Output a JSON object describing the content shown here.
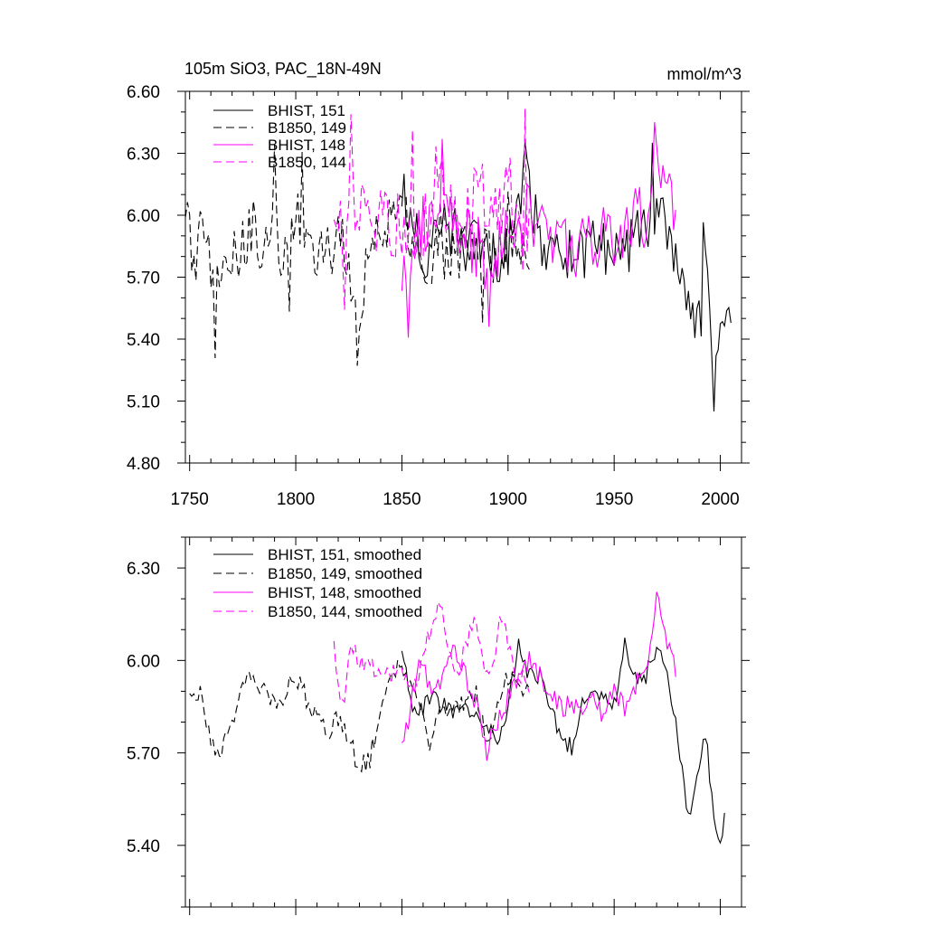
{
  "colors": {
    "black": "#000000",
    "magenta": "#ff00ff"
  },
  "chart_data": [
    {
      "type": "line",
      "title": "105m SiO3, PAC_18N-49N",
      "units": "mmol/m^3",
      "xlabel": "",
      "ylabel": "",
      "xlim": [
        1748,
        2010
      ],
      "ylim": [
        4.8,
        6.6
      ],
      "xticks": [
        1750,
        1800,
        1850,
        1900,
        1950,
        2000
      ],
      "yticks": [
        4.8,
        5.1,
        5.4,
        5.7,
        6.0,
        6.3,
        6.6
      ],
      "xtick_labels": [
        "1750",
        "1800",
        "1850",
        "1900",
        "1950",
        "2000"
      ],
      "ytick_labels": [
        "4.80",
        "5.10",
        "5.40",
        "5.70",
        "6.00",
        "6.30",
        "6.60"
      ],
      "legend_position": "top-left",
      "series": [
        {
          "name": "BHIST, 151",
          "color": "#000000",
          "dash": "solid",
          "x0": 1850,
          "x1": 2005,
          "n": 156,
          "knots": [
            [
              1850,
              6.1
            ],
            [
              1860,
              5.78
            ],
            [
              1870,
              5.95
            ],
            [
              1880,
              5.85
            ],
            [
              1890,
              5.82
            ],
            [
              1900,
              5.8
            ],
            [
              1908,
              6.2
            ],
            [
              1915,
              5.9
            ],
            [
              1920,
              5.85
            ],
            [
              1930,
              5.8
            ],
            [
              1940,
              5.85
            ],
            [
              1950,
              5.8
            ],
            [
              1955,
              5.85
            ],
            [
              1960,
              5.95
            ],
            [
              1965,
              5.9
            ],
            [
              1970,
              6.05
            ],
            [
              1975,
              5.95
            ],
            [
              1980,
              5.8
            ],
            [
              1985,
              5.5
            ],
            [
              1990,
              5.45
            ],
            [
              1993,
              5.75
            ],
            [
              1997,
              5.35
            ],
            [
              2000,
              5.35
            ],
            [
              2005,
              5.55
            ]
          ],
          "amp": 0.14,
          "seed": 151,
          "spikes": [
            [
              1854,
              0.2
            ],
            [
              1908,
              0.25
            ],
            [
              1930,
              -0.2
            ],
            [
              1957,
              -0.3
            ],
            [
              1968,
              0.3
            ],
            [
              1988,
              -0.2
            ],
            [
              1992,
              0.3
            ],
            [
              1997,
              -0.35
            ]
          ]
        },
        {
          "name": "B1850, 149",
          "color": "#000000",
          "dash": "dash",
          "x0": 1748,
          "x1": 1910,
          "n": 163,
          "knots": [
            [
              1748,
              6.05
            ],
            [
              1752,
              5.75
            ],
            [
              1756,
              6.05
            ],
            [
              1762,
              5.6
            ],
            [
              1770,
              5.78
            ],
            [
              1775,
              5.85
            ],
            [
              1780,
              5.95
            ],
            [
              1785,
              5.8
            ],
            [
              1790,
              6.0
            ],
            [
              1795,
              5.75
            ],
            [
              1800,
              6.0
            ],
            [
              1808,
              5.85
            ],
            [
              1815,
              5.8
            ],
            [
              1820,
              5.9
            ],
            [
              1825,
              5.75
            ],
            [
              1830,
              5.55
            ],
            [
              1835,
              5.85
            ],
            [
              1840,
              5.95
            ],
            [
              1850,
              6.0
            ],
            [
              1860,
              5.8
            ],
            [
              1870,
              5.8
            ],
            [
              1880,
              5.85
            ],
            [
              1890,
              5.78
            ],
            [
              1900,
              5.9
            ],
            [
              1910,
              5.85
            ]
          ],
          "amp": 0.15,
          "seed": 149,
          "spikes": [
            [
              1755,
              0.15
            ],
            [
              1762,
              -0.15
            ],
            [
              1790,
              0.2
            ],
            [
              1797,
              -0.25
            ],
            [
              1803,
              0.25
            ],
            [
              1829,
              -0.25
            ],
            [
              1868,
              0.2
            ],
            [
              1888,
              -0.25
            ],
            [
              1900,
              0.3
            ]
          ]
        },
        {
          "name": "BHIST, 148",
          "color": "#ff00ff",
          "dash": "solid",
          "x0": 1850,
          "x1": 1979,
          "n": 130,
          "knots": [
            [
              1850,
              5.7
            ],
            [
              1855,
              5.9
            ],
            [
              1860,
              5.95
            ],
            [
              1870,
              6.0
            ],
            [
              1880,
              5.9
            ],
            [
              1890,
              5.7
            ],
            [
              1895,
              5.85
            ],
            [
              1900,
              5.9
            ],
            [
              1905,
              6.0
            ],
            [
              1910,
              6.0
            ],
            [
              1915,
              5.95
            ],
            [
              1920,
              5.9
            ],
            [
              1930,
              5.85
            ],
            [
              1940,
              5.85
            ],
            [
              1950,
              5.85
            ],
            [
              1955,
              5.95
            ],
            [
              1960,
              6.0
            ],
            [
              1965,
              5.95
            ],
            [
              1970,
              6.25
            ],
            [
              1975,
              6.1
            ],
            [
              1979,
              5.95
            ]
          ],
          "amp": 0.16,
          "seed": 148,
          "spikes": [
            [
              1853,
              -0.3
            ],
            [
              1869,
              0.25
            ],
            [
              1886,
              0.25
            ],
            [
              1891,
              -0.35
            ],
            [
              1945,
              0.3
            ],
            [
              1962,
              0.25
            ],
            [
              1969,
              0.35
            ]
          ]
        },
        {
          "name": "B1850, 144",
          "color": "#ff00ff",
          "dash": "dash",
          "x0": 1818,
          "x1": 1910,
          "n": 93,
          "knots": [
            [
              1818,
              6.05
            ],
            [
              1822,
              5.85
            ],
            [
              1826,
              6.1
            ],
            [
              1830,
              6.0
            ],
            [
              1835,
              5.98
            ],
            [
              1840,
              5.98
            ],
            [
              1845,
              5.95
            ],
            [
              1850,
              5.95
            ],
            [
              1855,
              5.85
            ],
            [
              1860,
              5.9
            ],
            [
              1865,
              6.15
            ],
            [
              1870,
              6.1
            ],
            [
              1875,
              6.0
            ],
            [
              1880,
              6.0
            ],
            [
              1885,
              6.1
            ],
            [
              1890,
              6.1
            ],
            [
              1895,
              5.95
            ],
            [
              1900,
              6.15
            ],
            [
              1905,
              5.95
            ],
            [
              1910,
              5.9
            ]
          ],
          "amp": 0.17,
          "seed": 144,
          "spikes": [
            [
              1823,
              -0.3
            ],
            [
              1826,
              0.3
            ],
            [
              1855,
              0.55
            ],
            [
              1866,
              0.3
            ],
            [
              1896,
              0.3
            ],
            [
              1907,
              -0.35
            ],
            [
              1908,
              0.45
            ]
          ]
        }
      ]
    },
    {
      "type": "line",
      "title": "",
      "xlim": [
        1748,
        2010
      ],
      "ylim": [
        5.2,
        6.4
      ],
      "yticks": [
        5.4,
        5.7,
        6.0,
        6.3
      ],
      "ytick_labels": [
        "5.40",
        "5.70",
        "6.00",
        "6.30"
      ],
      "legend_position": "top-left",
      "series": [
        {
          "name": "BHIST, 151, smoothed",
          "color": "#000000",
          "dash": "solid",
          "x0": 1850,
          "x1": 2002,
          "n": 153,
          "knots": [
            [
              1850,
              6.02
            ],
            [
              1855,
              5.85
            ],
            [
              1860,
              5.85
            ],
            [
              1865,
              5.87
            ],
            [
              1870,
              5.85
            ],
            [
              1875,
              5.83
            ],
            [
              1880,
              5.85
            ],
            [
              1885,
              5.82
            ],
            [
              1890,
              5.8
            ],
            [
              1895,
              5.75
            ],
            [
              1900,
              5.85
            ],
            [
              1905,
              6.05
            ],
            [
              1910,
              5.95
            ],
            [
              1915,
              5.95
            ],
            [
              1920,
              5.85
            ],
            [
              1925,
              5.75
            ],
            [
              1930,
              5.72
            ],
            [
              1935,
              5.85
            ],
            [
              1940,
              5.9
            ],
            [
              1945,
              5.88
            ],
            [
              1950,
              5.85
            ],
            [
              1955,
              6.05
            ],
            [
              1960,
              5.95
            ],
            [
              1965,
              5.95
            ],
            [
              1970,
              6.05
            ],
            [
              1975,
              5.95
            ],
            [
              1980,
              5.75
            ],
            [
              1985,
              5.48
            ],
            [
              1990,
              5.65
            ],
            [
              1993,
              5.77
            ],
            [
              1996,
              5.55
            ],
            [
              2000,
              5.4
            ],
            [
              2002,
              5.52
            ]
          ],
          "amp": 0.03,
          "seed": 1151,
          "spikes": []
        },
        {
          "name": "B1850, 149, smoothed",
          "color": "#000000",
          "dash": "dash",
          "x0": 1750,
          "x1": 1910,
          "n": 161,
          "knots": [
            [
              1750,
              5.88
            ],
            [
              1755,
              5.9
            ],
            [
              1760,
              5.75
            ],
            [
              1764,
              5.7
            ],
            [
              1770,
              5.8
            ],
            [
              1775,
              5.9
            ],
            [
              1780,
              5.95
            ],
            [
              1785,
              5.9
            ],
            [
              1790,
              5.85
            ],
            [
              1795,
              5.9
            ],
            [
              1800,
              5.95
            ],
            [
              1805,
              5.88
            ],
            [
              1810,
              5.82
            ],
            [
              1815,
              5.75
            ],
            [
              1820,
              5.82
            ],
            [
              1825,
              5.75
            ],
            [
              1830,
              5.65
            ],
            [
              1835,
              5.68
            ],
            [
              1840,
              5.85
            ],
            [
              1845,
              5.95
            ],
            [
              1850,
              6.0
            ],
            [
              1855,
              5.9
            ],
            [
              1860,
              5.82
            ],
            [
              1863,
              5.7
            ],
            [
              1868,
              5.85
            ],
            [
              1875,
              5.85
            ],
            [
              1880,
              5.85
            ],
            [
              1885,
              5.9
            ],
            [
              1890,
              5.72
            ],
            [
              1895,
              5.85
            ],
            [
              1900,
              5.95
            ],
            [
              1905,
              5.92
            ],
            [
              1910,
              5.9
            ]
          ],
          "amp": 0.035,
          "seed": 1149,
          "spikes": []
        },
        {
          "name": "BHIST, 148, smoothed",
          "color": "#ff00ff",
          "dash": "solid",
          "x0": 1850,
          "x1": 1979,
          "n": 130,
          "knots": [
            [
              1850,
              5.72
            ],
            [
              1853,
              5.8
            ],
            [
              1858,
              6.0
            ],
            [
              1865,
              5.9
            ],
            [
              1870,
              5.95
            ],
            [
              1875,
              6.05
            ],
            [
              1880,
              5.95
            ],
            [
              1885,
              5.85
            ],
            [
              1890,
              5.7
            ],
            [
              1895,
              5.8
            ],
            [
              1900,
              5.88
            ],
            [
              1905,
              5.95
            ],
            [
              1910,
              6.0
            ],
            [
              1915,
              5.95
            ],
            [
              1920,
              5.9
            ],
            [
              1925,
              5.85
            ],
            [
              1930,
              5.85
            ],
            [
              1935,
              5.85
            ],
            [
              1940,
              5.88
            ],
            [
              1945,
              5.82
            ],
            [
              1950,
              5.9
            ],
            [
              1955,
              5.85
            ],
            [
              1960,
              5.92
            ],
            [
              1965,
              5.95
            ],
            [
              1970,
              6.22
            ],
            [
              1975,
              6.05
            ],
            [
              1979,
              5.98
            ]
          ],
          "amp": 0.035,
          "seed": 1148,
          "spikes": []
        },
        {
          "name": "B1850, 144, smoothed",
          "color": "#ff00ff",
          "dash": "dash",
          "x0": 1818,
          "x1": 1910,
          "n": 93,
          "knots": [
            [
              1818,
              6.05
            ],
            [
              1822,
              5.85
            ],
            [
              1826,
              6.05
            ],
            [
              1830,
              6.0
            ],
            [
              1835,
              5.97
            ],
            [
              1840,
              5.98
            ],
            [
              1845,
              5.95
            ],
            [
              1850,
              5.98
            ],
            [
              1855,
              5.9
            ],
            [
              1860,
              6.0
            ],
            [
              1865,
              6.15
            ],
            [
              1868,
              6.2
            ],
            [
              1872,
              6.0
            ],
            [
              1877,
              5.95
            ],
            [
              1880,
              6.05
            ],
            [
              1885,
              6.15
            ],
            [
              1888,
              6.0
            ],
            [
              1892,
              5.95
            ],
            [
              1897,
              6.15
            ],
            [
              1902,
              5.98
            ],
            [
              1905,
              5.95
            ],
            [
              1910,
              5.93
            ]
          ],
          "amp": 0.035,
          "seed": 1144,
          "spikes": []
        }
      ]
    }
  ]
}
